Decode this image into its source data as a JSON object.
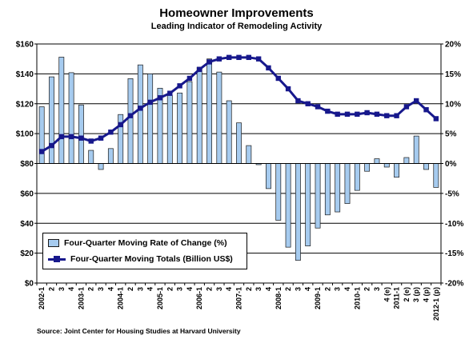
{
  "title": "Homeowner Improvements",
  "subtitle": "Leading Indicator of Remodeling Activity",
  "source": "Source: Joint Center for Housing Studies at Harvard University",
  "chart_data": {
    "type": "bar",
    "title": "Homeowner Improvements",
    "subtitle": "Leading Indicator of Remodeling Activity",
    "xlabel": "",
    "ylabel_left": "",
    "ylabel_right": "",
    "categories": [
      "2002-1",
      "2",
      "3",
      "4",
      "2003-1",
      "2",
      "3",
      "4",
      "2004-1",
      "2",
      "3",
      "4",
      "2005-1",
      "2",
      "3",
      "4",
      "2006-1",
      "2",
      "3",
      "4",
      "2007-1",
      "2",
      "3",
      "4",
      "2008-1",
      "2",
      "3",
      "4",
      "2009-1",
      "2",
      "3",
      "4",
      "2010-1",
      "2",
      "3",
      "4 (e)",
      "2011-1",
      "2 (e)",
      "3 (p)",
      "4 (p)",
      "2012-1 (p)"
    ],
    "y_left_ticks": [
      "$0",
      "$20",
      "$40",
      "$60",
      "$80",
      "$100",
      "$120",
      "$140",
      "$160"
    ],
    "y_left_range": [
      0,
      160
    ],
    "y_right_ticks": [
      "-20%",
      "-15%",
      "-10%",
      "-5%",
      "0%",
      "5%",
      "10%",
      "15%",
      "20%"
    ],
    "y_right_range": [
      -20,
      20
    ],
    "grid": "horizontal",
    "legend_position": "bottom-left",
    "series": [
      {
        "name": "Four-Quarter Moving Rate of Change (%)",
        "kind": "bar",
        "axis": "right",
        "color": "#a6cbef",
        "values": [
          9.5,
          14.5,
          17.8,
          15.2,
          9.8,
          2.2,
          -1.0,
          2.5,
          8.2,
          14.2,
          16.5,
          15.0,
          12.6,
          11.4,
          11.8,
          13.7,
          16.1,
          17.5,
          15.3,
          10.5,
          6.8,
          3.0,
          -0.2,
          -4.2,
          -9.5,
          -14.0,
          -16.2,
          -13.8,
          -10.8,
          -8.6,
          -8.1,
          -6.7,
          -4.5,
          -1.3,
          0.8,
          -0.6,
          -2.3,
          1.0,
          4.6,
          -1.0,
          -4.0
        ]
      },
      {
        "name": "Four-Quarter Moving Totals (Billion US$)",
        "kind": "line",
        "axis": "left",
        "color": "#17188c",
        "values": [
          88,
          92,
          98,
          98,
          97,
          95,
          97,
          101,
          106,
          112,
          117,
          121,
          124,
          127,
          132,
          137,
          143,
          148,
          150,
          151,
          151,
          151,
          150,
          144,
          137,
          130,
          122,
          120,
          118,
          115,
          113,
          113,
          113,
          114,
          113,
          112,
          112,
          118,
          122,
          116,
          110
        ]
      }
    ]
  }
}
